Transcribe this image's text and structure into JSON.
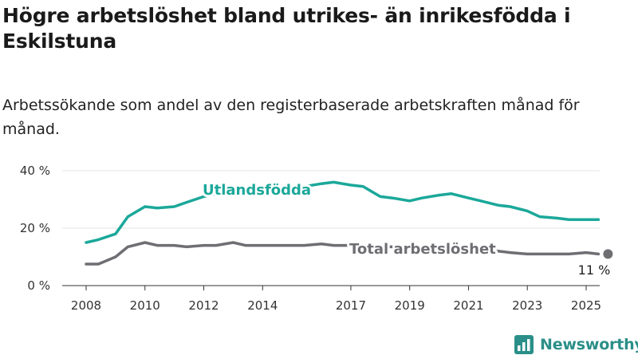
{
  "title": "Högre arbetslöshet bland utrikes- än inrikesfödda i Eskilstuna",
  "subtitle": "Arbetssökande som andel av den registerbaserade arbetskraften månad för månad.",
  "brand": {
    "name": "Newsworthy",
    "icon": "newsworthy-logo-icon"
  },
  "colors": {
    "utlandsfodda": "#1ba89a",
    "total": "#6e6e73",
    "grid": "#e3e3e3",
    "axis": "#333333"
  },
  "chart_data": {
    "type": "line",
    "title": "Högre arbetslöshet bland utrikes- än inrikesfödda i Eskilstuna",
    "subtitle": "Arbetssökande som andel av den registerbaserade arbetskraften månad för månad.",
    "xlabel": "",
    "ylabel": "",
    "x_ticks": [
      "2008",
      "2010",
      "2012",
      "2014",
      "2017",
      "2019",
      "2021",
      "2023",
      "2025"
    ],
    "y_ticks": [
      "0 %",
      "20 %",
      "40 %"
    ],
    "ylim": [
      0,
      40
    ],
    "grid": true,
    "legend": "inline labels",
    "end_label": "11 %",
    "series": [
      {
        "name": "Utlandsfödda",
        "color": "#1ba89a",
        "x": [
          "2008-01",
          "2008-06",
          "2009-01",
          "2009-06",
          "2010-01",
          "2010-06",
          "2011-01",
          "2011-06",
          "2012-01",
          "2012-06",
          "2013-01",
          "2013-06",
          "2014-01",
          "2014-06",
          "2015-01",
          "2015-06",
          "2016-01",
          "2016-06",
          "2017-01",
          "2017-06",
          "2018-01",
          "2018-06",
          "2019-01",
          "2019-06",
          "2020-01",
          "2020-06",
          "2021-01",
          "2021-06",
          "2022-01",
          "2022-06",
          "2023-01",
          "2023-06",
          "2024-01",
          "2024-06",
          "2025-01",
          "2025-06"
        ],
        "values": [
          15,
          16,
          18,
          24,
          27.5,
          27,
          27.5,
          29,
          31,
          32,
          33,
          33.5,
          33.5,
          33,
          34,
          34.5,
          35.5,
          36,
          35,
          34.5,
          31,
          30.5,
          29.5,
          30.5,
          31.5,
          32,
          30.5,
          29.5,
          28,
          27.5,
          26,
          24,
          23.5,
          23,
          23,
          23
        ]
      },
      {
        "name": "Total arbetslöshet",
        "color": "#6e6e73",
        "x": [
          "2008-01",
          "2008-06",
          "2009-01",
          "2009-06",
          "2010-01",
          "2010-06",
          "2011-01",
          "2011-06",
          "2012-01",
          "2012-06",
          "2013-01",
          "2013-06",
          "2014-01",
          "2014-06",
          "2015-01",
          "2015-06",
          "2016-01",
          "2016-06",
          "2017-01",
          "2017-06",
          "2018-01",
          "2018-06",
          "2019-01",
          "2019-06",
          "2020-01",
          "2020-06",
          "2021-01",
          "2021-06",
          "2022-01",
          "2022-06",
          "2023-01",
          "2023-06",
          "2024-01",
          "2024-06",
          "2025-01",
          "2025-06"
        ],
        "values": [
          7.5,
          7.5,
          10,
          13.5,
          15,
          14,
          14,
          13.5,
          14,
          14,
          15,
          14,
          14,
          14,
          14,
          14,
          14.5,
          14,
          14,
          13.5,
          13.5,
          13.5,
          13,
          13,
          13.5,
          14,
          13,
          12.5,
          12,
          11.5,
          11,
          11,
          11,
          11,
          11.5,
          11
        ]
      }
    ]
  }
}
